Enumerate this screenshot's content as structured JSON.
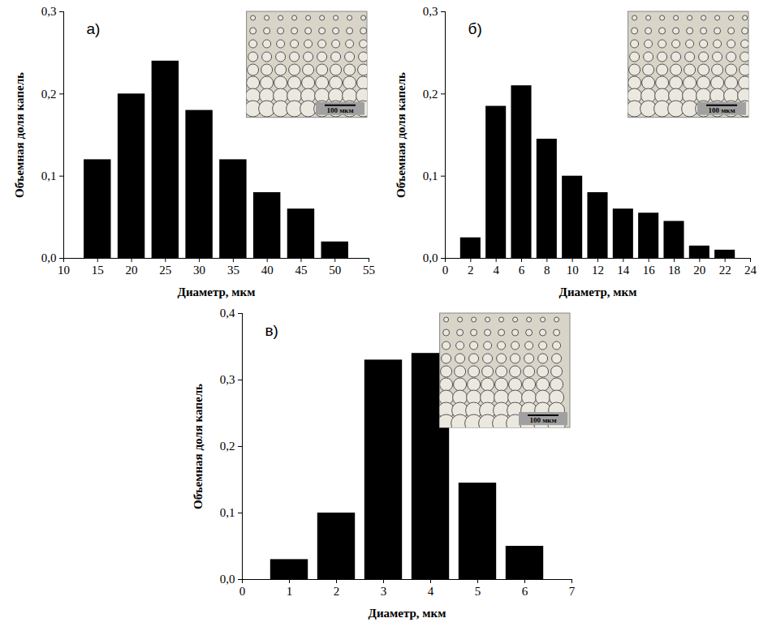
{
  "chart_data": [
    {
      "type": "bar",
      "title": "а)",
      "x": [
        15,
        20,
        25,
        30,
        35,
        40,
        45,
        50
      ],
      "values": [
        0.12,
        0.2,
        0.24,
        0.18,
        0.12,
        0.08,
        0.06,
        0.02
      ],
      "color": "#000000",
      "xlabel": "Диаметр, мкм",
      "ylabel": "Объемная доля капель",
      "xlim": [
        10,
        55
      ],
      "xticks": [
        10,
        15,
        20,
        25,
        30,
        35,
        40,
        45,
        50,
        55
      ],
      "ylim": [
        0,
        0.3
      ],
      "yticks": [
        {
          "value": 0,
          "label": "0,0"
        },
        {
          "value": 0.1,
          "label": "0,1"
        },
        {
          "value": 0.2,
          "label": "0,2"
        },
        {
          "value": 0.3,
          "label": "0,3"
        }
      ],
      "annotations": [
        "100 мкм"
      ]
    },
    {
      "type": "bar",
      "title": "б)",
      "x": [
        2,
        4,
        6,
        8,
        10,
        12,
        14,
        16,
        18,
        20,
        22
      ],
      "values": [
        0.025,
        0.185,
        0.21,
        0.145,
        0.1,
        0.08,
        0.06,
        0.055,
        0.045,
        0.015,
        0.01
      ],
      "color": "#000000",
      "xlabel": "Диаметр, мкм",
      "ylabel": "Объемная доля капель",
      "xlim": [
        0,
        24
      ],
      "xticks": [
        0,
        2,
        4,
        6,
        8,
        10,
        12,
        14,
        16,
        18,
        20,
        22,
        24
      ],
      "ylim": [
        0,
        0.3
      ],
      "yticks": [
        {
          "value": 0,
          "label": "0,0"
        },
        {
          "value": 0.1,
          "label": "0,1"
        },
        {
          "value": 0.2,
          "label": "0,2"
        },
        {
          "value": 0.3,
          "label": "0,3"
        }
      ],
      "annotations": [
        "100 мкм"
      ]
    },
    {
      "type": "bar",
      "title": "в)",
      "x": [
        1,
        2,
        3,
        4,
        5,
        6
      ],
      "values": [
        0.03,
        0.1,
        0.33,
        0.34,
        0.145,
        0.05
      ],
      "color": "#000000",
      "xlabel": "Диаметр, мкм",
      "ylabel": "Объемная доля капель",
      "xlim": [
        0,
        7
      ],
      "xticks": [
        0,
        1,
        2,
        3,
        4,
        5,
        6,
        7
      ],
      "ylim": [
        0,
        0.4
      ],
      "yticks": [
        {
          "value": 0,
          "label": "0,0"
        },
        {
          "value": 0.1,
          "label": "0,1"
        },
        {
          "value": 0.2,
          "label": "0,2"
        },
        {
          "value": 0.3,
          "label": "0,3"
        },
        {
          "value": 0.4,
          "label": "0,4"
        }
      ],
      "annotations": [
        "100 мкм"
      ]
    }
  ]
}
